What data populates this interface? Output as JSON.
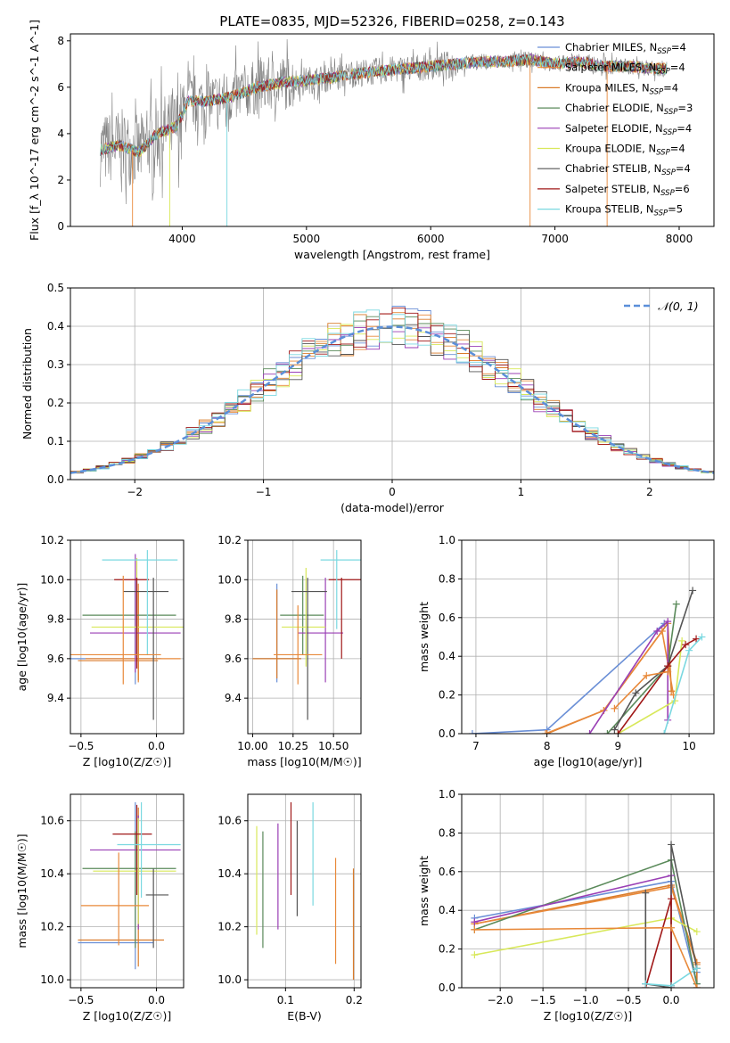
{
  "figure": {
    "title": "PLATE=0835, MJD=52326, FIBERID=0258, z=0.143"
  },
  "legend_labels": [
    "Chabrier MILES, N_SSP=4",
    "Salpeter MILES, N_SSP=4",
    "Kroupa MILES, N_SSP=4",
    "Chabrier ELODIE, N_SSP=3",
    "Salpeter ELODIE, N_SSP=4",
    "Kroupa ELODIE, N_SSP=4",
    "Chabrier STELIB, N_SSP=4",
    "Salpeter STELIB, N_SSP=6",
    "Kroupa STELIB, N_SSP=5"
  ],
  "colors": [
    "#6a8fd6",
    "#e8893a",
    "#d97b2a",
    "#5a8a5a",
    "#9a3fb5",
    "#d8e85a",
    "#555555",
    "#a01818",
    "#7ad8e0"
  ],
  "gauss_legend": "𝒩(0, 1)",
  "chart_data": [
    {
      "type": "line",
      "title": "PLATE=0835, MJD=52326, FIBERID=0258, z=0.143",
      "xlabel": "wavelength [Angstrom, rest frame]",
      "ylabel": "Flux [f_λ 10^-17 erg cm^-2 s^-1 A^-1]",
      "xlim": [
        3100,
        8280
      ],
      "ylim": [
        0,
        8.3
      ],
      "xticks": [
        4000,
        5000,
        6000,
        7000,
        8000
      ],
      "yticks": [
        0,
        2,
        4,
        6,
        8
      ],
      "data_series": {
        "name": "data",
        "color": "#808080"
      },
      "continuum": [
        [
          3340,
          3.3
        ],
        [
          3500,
          3.5
        ],
        [
          3650,
          3.2
        ],
        [
          3800,
          4.0
        ],
        [
          3950,
          4.3
        ],
        [
          4050,
          5.4
        ],
        [
          4200,
          5.4
        ],
        [
          4400,
          5.6
        ],
        [
          4600,
          6.0
        ],
        [
          4800,
          6.2
        ],
        [
          5000,
          6.3
        ],
        [
          5200,
          6.4
        ],
        [
          5400,
          6.6
        ],
        [
          5600,
          6.7
        ],
        [
          5800,
          6.8
        ],
        [
          6000,
          6.9
        ],
        [
          6200,
          7.0
        ],
        [
          6400,
          7.1
        ],
        [
          6600,
          7.1
        ],
        [
          6800,
          7.2
        ],
        [
          7000,
          7.0
        ],
        [
          7200,
          7.1
        ],
        [
          7400,
          6.9
        ],
        [
          7600,
          6.9
        ],
        [
          7800,
          6.8
        ],
        [
          7900,
          6.8
        ]
      ]
    },
    {
      "type": "bar",
      "title": "",
      "xlabel": "(data-model)/error",
      "ylabel": "Normed distribution",
      "xlim": [
        -2.5,
        2.5
      ],
      "ylim": [
        0,
        0.5
      ],
      "xticks": [
        -2,
        -1,
        0,
        1,
        2
      ],
      "xtick_labels": [
        "−2",
        "−1",
        "0",
        "1",
        "2"
      ],
      "yticks": [
        0.0,
        0.1,
        0.2,
        0.3,
        0.4,
        0.5
      ],
      "ytick_labels": [
        "0.0",
        "0.1",
        "0.2",
        "0.3",
        "0.4",
        "0.5"
      ],
      "bin_width": 0.1,
      "reference_curve": "standard normal, mean 0, sigma 1"
    },
    {
      "type": "scatter",
      "xlabel": "Z [log10(Z/Z☉)]",
      "ylabel": "age [log10(age/yr)]",
      "xlim": [
        -0.57,
        0.18
      ],
      "ylim": [
        9.22,
        10.2
      ],
      "xticks": [
        -0.5,
        0.0
      ],
      "xtick_labels": [
        "−0.5",
        "0.0"
      ],
      "yticks": [
        9.4,
        9.6,
        9.8,
        10.0,
        10.2
      ],
      "ytick_labels": [
        "9.4",
        "9.6",
        "9.8",
        "10.0",
        "10.2"
      ],
      "points": [
        {
          "x": -0.14,
          "xerr": [
            0.43,
            0.17
          ],
          "y": 9.6,
          "yerr": [
            0.13,
            0.41
          ],
          "c": 0
        },
        {
          "x": -0.12,
          "xerr": [
            0.35,
            0.28
          ],
          "y": 9.6,
          "yerr": [
            0.12,
            0.38
          ],
          "c": 1
        },
        {
          "x": -0.12,
          "xerr": [
            0.4,
            0.13
          ],
          "y": 9.59,
          "yerr": [
            0.1,
            0.35
          ],
          "c": 2
        },
        {
          "x": -0.14,
          "xerr": [
            0.35,
            0.27
          ],
          "y": 9.82,
          "yerr": [
            0.2,
            0.18
          ],
          "c": 3
        },
        {
          "x": -0.14,
          "xerr": [
            0.3,
            0.3
          ],
          "y": 9.73,
          "yerr": [
            0.2,
            0.4
          ],
          "c": 4
        },
        {
          "x": -0.13,
          "xerr": [
            0.3,
            0.35
          ],
          "y": 9.76,
          "yerr": [
            0.15,
            0.35
          ],
          "c": 5
        },
        {
          "x": -0.02,
          "xerr": [
            0.2,
            0.1
          ],
          "y": 9.94,
          "yerr": [
            0.65,
            0.07
          ],
          "c": 6
        },
        {
          "x": -0.13,
          "xerr": [
            0.15,
            0.08
          ],
          "y": 10.0,
          "yerr": [
            0.45,
            0.01
          ],
          "c": 7
        },
        {
          "x": -0.06,
          "xerr": [
            0.3,
            0.2
          ],
          "y": 10.1,
          "yerr": [
            0.48,
            0.05
          ],
          "c": 8
        },
        {
          "x": -0.22,
          "xerr": [
            0.35,
            0.25
          ],
          "y": 9.62,
          "yerr": [
            0.15,
            0.4
          ],
          "c": 1
        }
      ]
    },
    {
      "type": "scatter",
      "xlabel": "mass [log10(M/M☉)]",
      "ylabel": "",
      "xlim": [
        9.97,
        10.67
      ],
      "ylim": [
        9.22,
        10.2
      ],
      "xticks": [
        10.0,
        10.25,
        10.5
      ],
      "xtick_labels": [
        "10.00",
        "10.25",
        "10.50"
      ],
      "yticks": [
        9.4,
        9.6,
        9.8,
        10.0,
        10.2
      ],
      "ytick_labels": [
        "9.4",
        "9.6",
        "9.8",
        "10.0",
        "10.2"
      ],
      "points": [
        {
          "x": 10.15,
          "xerr": [
            0.15,
            0.15
          ],
          "y": 9.6,
          "yerr": [
            0.12,
            0.38
          ],
          "c": 0
        },
        {
          "x": 10.15,
          "xerr": [
            0.15,
            0.15
          ],
          "y": 9.6,
          "yerr": [
            0.1,
            0.35
          ],
          "c": 2
        },
        {
          "x": 10.31,
          "xerr": [
            0.14,
            0.13
          ],
          "y": 9.82,
          "yerr": [
            0.2,
            0.2
          ],
          "c": 3
        },
        {
          "x": 10.45,
          "xerr": [
            0.17,
            0.11
          ],
          "y": 9.73,
          "yerr": [
            0.25,
            0.28
          ],
          "c": 4
        },
        {
          "x": 10.33,
          "xerr": [
            0.15,
            0.12
          ],
          "y": 9.76,
          "yerr": [
            0.2,
            0.3
          ],
          "c": 5
        },
        {
          "x": 10.34,
          "xerr": [
            0.1,
            0.12
          ],
          "y": 9.94,
          "yerr": [
            0.65,
            0.07
          ],
          "c": 6
        },
        {
          "x": 10.55,
          "xerr": [
            0.08,
            0.12
          ],
          "y": 10.0,
          "yerr": [
            0.4,
            0.01
          ],
          "c": 7
        },
        {
          "x": 10.52,
          "xerr": [
            0.1,
            0.15
          ],
          "y": 10.1,
          "yerr": [
            0.35,
            0.05
          ],
          "c": 8
        },
        {
          "x": 10.28,
          "xerr": [
            0.15,
            0.15
          ],
          "y": 9.62,
          "yerr": [
            0.15,
            0.25
          ],
          "c": 1
        }
      ]
    },
    {
      "type": "line",
      "xlabel": "age [log10(age/yr)]",
      "ylabel": "mass weight",
      "xlim": [
        6.8,
        10.35
      ],
      "ylim": [
        0,
        1.0
      ],
      "xticks": [
        7,
        8,
        9,
        10
      ],
      "yticks": [
        0.0,
        0.2,
        0.4,
        0.6,
        0.8,
        1.0
      ],
      "ytick_labels": [
        "0.0",
        "0.2",
        "0.4",
        "0.6",
        "0.8",
        "1.0"
      ],
      "series": [
        {
          "c": 0,
          "x": [
            6.95,
            8.0,
            9.65
          ],
          "y": [
            0.0,
            0.02,
            0.57
          ]
        },
        {
          "c": 2,
          "x": [
            8.0,
            8.8,
            9.7,
            9.75
          ],
          "y": [
            0.0,
            0.12,
            0.57,
            0.22
          ]
        },
        {
          "c": 1,
          "x": [
            7.98,
            8.8,
            9.62,
            9.78
          ],
          "y": [
            0.0,
            0.12,
            0.53,
            0.2
          ]
        },
        {
          "c": 3,
          "x": [
            8.85,
            9.7,
            9.82
          ],
          "y": [
            0.0,
            0.35,
            0.67
          ]
        },
        {
          "c": 4,
          "x": [
            8.6,
            9.55,
            9.7,
            9.7
          ],
          "y": [
            0.0,
            0.53,
            0.58,
            0.07
          ]
        },
        {
          "c": 5,
          "x": [
            9.0,
            9.8,
            9.9
          ],
          "y": [
            0.0,
            0.17,
            0.48
          ]
        },
        {
          "c": 6,
          "x": [
            8.95,
            9.25,
            9.7,
            10.05
          ],
          "y": [
            0.02,
            0.21,
            0.35,
            0.74
          ]
        },
        {
          "c": 7,
          "x": [
            9.0,
            9.7,
            9.95,
            10.1
          ],
          "y": [
            0.0,
            0.35,
            0.46,
            0.49
          ]
        },
        {
          "c": 8,
          "x": [
            9.65,
            10.0,
            10.18
          ],
          "y": [
            0.0,
            0.43,
            0.5
          ]
        },
        {
          "c": 1,
          "x": [
            8.95,
            9.4,
            9.7
          ],
          "y": [
            0.13,
            0.3,
            0.32
          ]
        }
      ]
    },
    {
      "type": "scatter",
      "xlabel": "Z [log10(Z/Z☉)]",
      "ylabel": "mass [log10(M/M☉)]",
      "xlim": [
        -0.57,
        0.18
      ],
      "ylim": [
        9.97,
        10.7
      ],
      "xticks": [
        -0.5,
        0.0
      ],
      "xtick_labels": [
        "−0.5",
        "0.0"
      ],
      "yticks": [
        10.0,
        10.2,
        10.4,
        10.6
      ],
      "ytick_labels": [
        "10.0",
        "10.2",
        "10.4",
        "10.6"
      ],
      "points": [
        {
          "x": -0.14,
          "xerr": [
            0.38,
            0.12
          ],
          "y": 10.14,
          "yerr": [
            0.1,
            0.53
          ],
          "c": 0
        },
        {
          "x": -0.12,
          "xerr": [
            0.4,
            0.17
          ],
          "y": 10.15,
          "yerr": [
            0.1,
            0.5
          ],
          "c": 2
        },
        {
          "x": -0.14,
          "xerr": [
            0.35,
            0.27
          ],
          "y": 10.42,
          "yerr": [
            0.3,
            0.14
          ],
          "c": 3
        },
        {
          "x": -0.12,
          "xerr": [
            0.32,
            0.28
          ],
          "y": 10.49,
          "yerr": [
            0.3,
            0.13
          ],
          "c": 4
        },
        {
          "x": -0.12,
          "xerr": [
            0.3,
            0.25
          ],
          "y": 10.41,
          "yerr": [
            0.2,
            0.2
          ],
          "c": 5
        },
        {
          "x": -0.02,
          "xerr": [
            0.05,
            0.1
          ],
          "y": 10.32,
          "yerr": [
            0.2,
            0.1
          ],
          "c": 6
        },
        {
          "x": -0.13,
          "xerr": [
            0.16,
            0.1
          ],
          "y": 10.55,
          "yerr": [
            0.23,
            0.11
          ],
          "c": 7
        },
        {
          "x": -0.1,
          "xerr": [
            0.16,
            0.26
          ],
          "y": 10.51,
          "yerr": [
            0.2,
            0.16
          ],
          "c": 8
        },
        {
          "x": -0.25,
          "xerr": [
            0.25,
            0.2
          ],
          "y": 10.28,
          "yerr": [
            0.15,
            0.2
          ],
          "c": 1
        }
      ]
    },
    {
      "type": "scatter",
      "xlabel": "E(B-V)",
      "ylabel": "",
      "xlim": [
        0.045,
        0.21
      ],
      "ylim": [
        9.97,
        10.7
      ],
      "xticks": [
        0.1,
        0.2
      ],
      "xtick_labels": [
        "0.1",
        "0.2"
      ],
      "yticks": [
        10.0,
        10.2,
        10.4,
        10.6
      ],
      "ytick_labels": [
        "10.0",
        "10.2",
        "10.4",
        "10.6"
      ],
      "points": [
        {
          "x": 0.058,
          "y0": 10.17,
          "y1": 10.58,
          "c": 5
        },
        {
          "x": 0.067,
          "y0": 10.12,
          "y1": 10.56,
          "c": 3
        },
        {
          "x": 0.089,
          "y0": 10.19,
          "y1": 10.59,
          "c": 4
        },
        {
          "x": 0.108,
          "y0": 10.32,
          "y1": 10.67,
          "c": 7
        },
        {
          "x": 0.117,
          "y0": 10.24,
          "y1": 10.6,
          "c": 6
        },
        {
          "x": 0.14,
          "y0": 10.28,
          "y1": 10.67,
          "c": 8
        },
        {
          "x": 0.173,
          "y0": 10.06,
          "y1": 10.46,
          "c": 1
        },
        {
          "x": 0.199,
          "y0": 10.0,
          "y1": 10.42,
          "c": 2
        }
      ]
    },
    {
      "type": "line",
      "xlabel": "Z [log10(Z/Z☉)]",
      "ylabel": "mass weight",
      "xlim": [
        -2.45,
        0.5
      ],
      "ylim": [
        0,
        1.0
      ],
      "xticks": [
        -2.0,
        -1.5,
        -1.0,
        -0.5,
        0.0
      ],
      "xtick_labels": [
        "−2.0",
        "−1.5",
        "−1.0",
        "−0.5",
        "0.0"
      ],
      "yticks": [
        0.0,
        0.2,
        0.4,
        0.6,
        0.8,
        1.0
      ],
      "ytick_labels": [
        "0.0",
        "0.2",
        "0.4",
        "0.6",
        "0.8",
        "1.0"
      ],
      "series": [
        {
          "c": 0,
          "x": [
            -2.3,
            0.0,
            0.3,
            0.3
          ],
          "y": [
            0.36,
            0.55,
            0.02,
            0.08
          ]
        },
        {
          "c": 2,
          "x": [
            -2.3,
            0.0,
            0.3,
            0.3
          ],
          "y": [
            0.33,
            0.53,
            0.13,
            0.0
          ]
        },
        {
          "c": 1,
          "x": [
            -2.3,
            0.0,
            0.3
          ],
          "y": [
            0.33,
            0.52,
            0.12
          ]
        },
        {
          "c": 3,
          "x": [
            -2.3,
            0.0,
            0.3
          ],
          "y": [
            0.3,
            0.66,
            0.02
          ]
        },
        {
          "c": 4,
          "x": [
            -2.3,
            0.0,
            0.0
          ],
          "y": [
            0.34,
            0.58,
            0.0
          ]
        },
        {
          "c": 5,
          "x": [
            -2.3,
            0.0,
            0.3
          ],
          "y": [
            0.17,
            0.36,
            0.29
          ]
        },
        {
          "c": 6,
          "x": [
            -0.3,
            -0.3,
            0.0,
            0.0,
            0.3
          ],
          "y": [
            0.49,
            0.02,
            0.0,
            0.74,
            0.1
          ]
        },
        {
          "c": 7,
          "x": [
            -0.3,
            0.0,
            0.0
          ],
          "y": [
            0.0,
            0.46,
            0.01
          ]
        },
        {
          "c": 8,
          "x": [
            -0.3,
            0.0,
            0.3
          ],
          "y": [
            0.02,
            0.01,
            0.1
          ]
        },
        {
          "c": 1,
          "x": [
            -2.3,
            0.0,
            0.3
          ],
          "y": [
            0.3,
            0.31,
            0.0
          ]
        }
      ]
    }
  ]
}
